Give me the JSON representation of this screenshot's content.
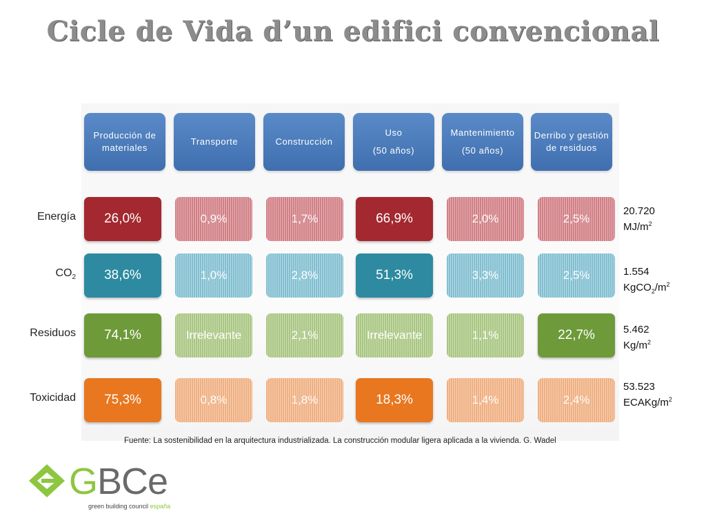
{
  "title": "Cicle de Vida d’un edifici convencional",
  "chart_data": {
    "type": "table",
    "columns": [
      {
        "label": "Producción de materiales",
        "sub": ""
      },
      {
        "label": "Transporte",
        "sub": ""
      },
      {
        "label": "Construcción",
        "sub": ""
      },
      {
        "label": "Uso",
        "sub": "(50 años)"
      },
      {
        "label": "Mantenimiento",
        "sub": "(50 años)"
      },
      {
        "label": "Derribo y gestión de residuos",
        "sub": ""
      }
    ],
    "rows": [
      {
        "label": "Energía",
        "label_sub": "",
        "values": [
          "26,0%",
          "0,9%",
          "1,7%",
          "66,9%",
          "2,0%",
          "2,5%"
        ],
        "emphasis": [
          1,
          0,
          0,
          1,
          0,
          0
        ],
        "color": "#a3282f",
        "light": "#e6b4b8",
        "total_value": "20.720",
        "total_unit": "MJ/m",
        "total_unit_sub": "",
        "total_unit_tail": "",
        "total_unit_sup": "2"
      },
      {
        "label": "CO",
        "label_sub": "2",
        "values": [
          "38,6%",
          "1,0%",
          "2,8%",
          "51,3%",
          "3,3%",
          "2,5%"
        ],
        "emphasis": [
          1,
          0,
          0,
          1,
          0,
          0
        ],
        "color": "#2d8aa0",
        "light": "#b6dce6",
        "total_value": "1.554",
        "total_unit": "KgCO",
        "total_unit_sub": "2",
        "total_unit_tail": "/m",
        "total_unit_sup": "2"
      },
      {
        "label": "Residuos",
        "label_sub": "",
        "values": [
          "74,1%",
          "Irrelevante",
          "2,1%",
          "Irrelevante",
          "1,1%",
          "22,7%"
        ],
        "emphasis": [
          1,
          0,
          0,
          0,
          0,
          1
        ],
        "color": "#6e9a3a",
        "light": "#cfe0b6",
        "total_value": "5.462",
        "total_unit": "Kg/m",
        "total_unit_sub": "",
        "total_unit_tail": "",
        "total_unit_sup": "2"
      },
      {
        "label": "Toxicidad",
        "label_sub": "",
        "values": [
          "75,3%",
          "0,8%",
          "1,8%",
          "18,3%",
          "1,4%",
          "2,4%"
        ],
        "emphasis": [
          1,
          0,
          0,
          1,
          0,
          0
        ],
        "color": "#e8771f",
        "light": "#f7d3b6",
        "total_value": "53.523",
        "total_unit": "ECAKg/m",
        "total_unit_sub": "",
        "total_unit_tail": "",
        "total_unit_sup": "2"
      }
    ]
  },
  "source": "Fuente: La sostenibilidad en la arquitectura industrializada. La construcción modular ligera aplicada a la vivienda. G. Wadel",
  "logo": {
    "brand_g": "G",
    "brand_rest": "BCe",
    "tagline": "green building council",
    "tagline_country": "españa",
    "accent": "#8dc63f"
  }
}
